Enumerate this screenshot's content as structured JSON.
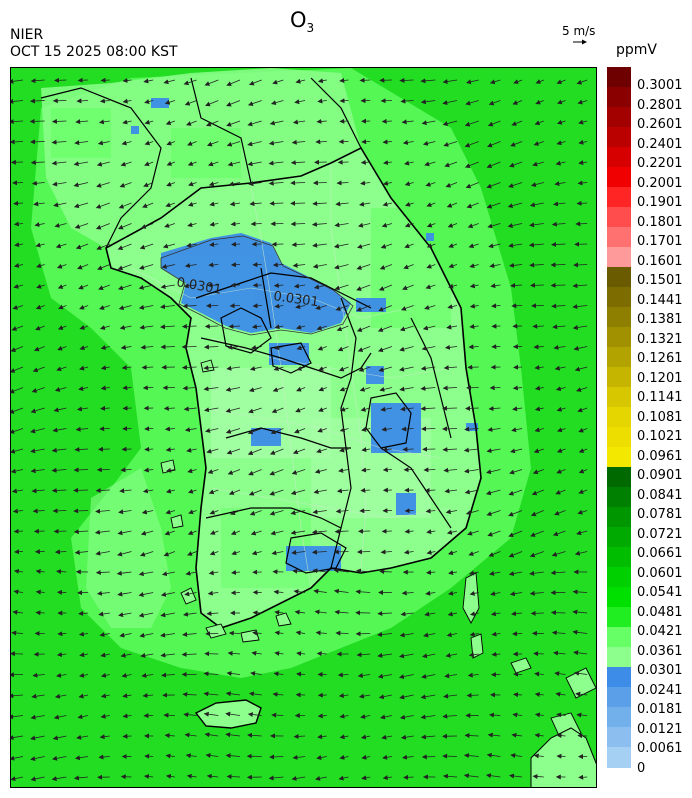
{
  "header": {
    "title_main": "O",
    "title_sub": "3",
    "agency": "NIER",
    "datetime": "OCT 15 2025 08:00 KST",
    "wind_reference": "5 m/s",
    "unit": "ppmV"
  },
  "map": {
    "contour_label": "0.0301",
    "wind_direction": "easterly / northeasterly flow"
  },
  "legend": {
    "labels": [
      "0.3001",
      "0.2801",
      "0.2601",
      "0.2401",
      "0.2201",
      "0.2001",
      "0.1901",
      "0.1801",
      "0.1701",
      "0.1601",
      "0.1501",
      "0.1441",
      "0.1381",
      "0.1321",
      "0.1261",
      "0.1201",
      "0.1141",
      "0.1081",
      "0.1021",
      "0.0961",
      "0.0901",
      "0.0841",
      "0.0781",
      "0.0721",
      "0.0661",
      "0.0601",
      "0.0541",
      "0.0481",
      "0.0421",
      "0.0361",
      "0.0301",
      "0.0241",
      "0.0181",
      "0.0121",
      "0.0061",
      "0"
    ],
    "colors": [
      "#6e0000",
      "#8a0000",
      "#a30000",
      "#bb0000",
      "#d60000",
      "#f00000",
      "#ff2525",
      "#ff4d4d",
      "#ff7070",
      "#ff9a9a",
      "#6b5b00",
      "#7d6d00",
      "#8f7f00",
      "#a19100",
      "#b3a300",
      "#c5b500",
      "#d7c700",
      "#e6d600",
      "#eede00",
      "#f2e800",
      "#006a00",
      "#008000",
      "#009600",
      "#00aa00",
      "#00bd00",
      "#00d000",
      "#00e000",
      "#20ee20",
      "#66ff66",
      "#8cff8c",
      "#3d8de8",
      "#5a9fe8",
      "#72b0ec",
      "#8cbfef",
      "#a6d0f3"
    ]
  }
}
